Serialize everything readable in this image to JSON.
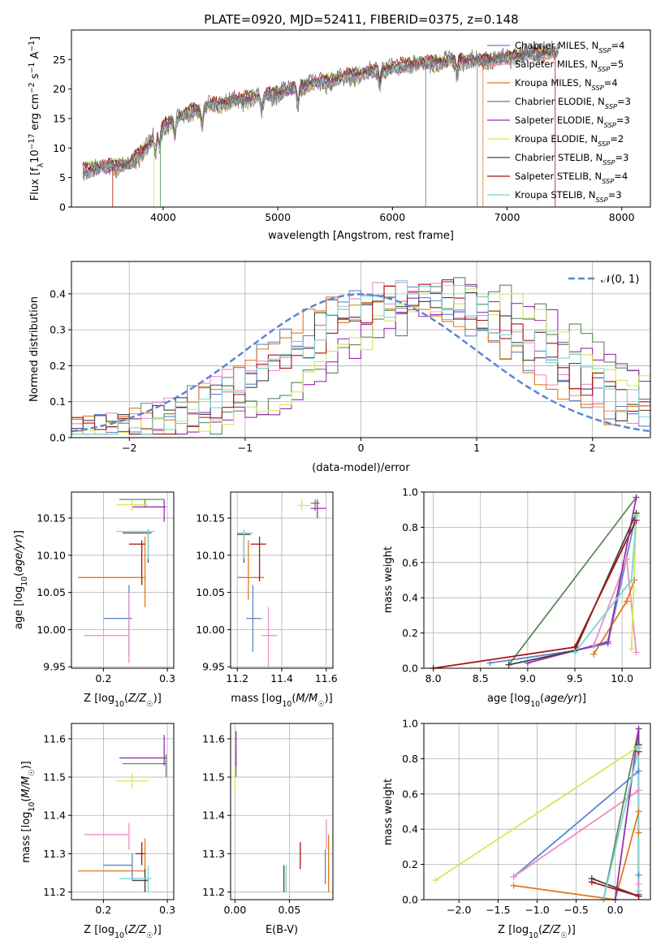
{
  "title": "PLATE=0920, MJD=52411, FIBERID=0375, z=0.148",
  "colors": {
    "chabrier_miles": "#5b86cf",
    "salpeter_miles": "#ec8ec4",
    "kroupa_miles": "#e07a1f",
    "chabrier_elodie": "#5a8a5a",
    "salpeter_elodie": "#9a2fb0",
    "kroupa_elodie": "#d4e85a",
    "chabrier_stelib": "#444444",
    "salpeter_stelib": "#aa1111",
    "kroupa_stelib": "#7fd3d3",
    "data": "#777777",
    "gaussian": "#5b86cf"
  },
  "legend": [
    {
      "key": "chabrier_miles",
      "label": "Chabrier MILES, N",
      "sub": "SSP",
      "suffix": "=4"
    },
    {
      "key": "salpeter_miles",
      "label": "Salpeter MILES, N",
      "sub": "SSP",
      "suffix": "=5"
    },
    {
      "key": "kroupa_miles",
      "label": "Kroupa MILES, N",
      "sub": "SSP",
      "suffix": "=4"
    },
    {
      "key": "chabrier_elodie",
      "label": "Chabrier ELODIE, N",
      "sub": "SSP",
      "suffix": "=3"
    },
    {
      "key": "salpeter_elodie",
      "label": "Salpeter ELODIE, N",
      "sub": "SSP",
      "suffix": "=3"
    },
    {
      "key": "kroupa_elodie",
      "label": "Kroupa ELODIE, N",
      "sub": "SSP",
      "suffix": "=2"
    },
    {
      "key": "chabrier_stelib",
      "label": "Chabrier STELIB, N",
      "sub": "SSP",
      "suffix": "=3"
    },
    {
      "key": "salpeter_stelib",
      "label": "Salpeter STELIB, N",
      "sub": "SSP",
      "suffix": "=4"
    },
    {
      "key": "kroupa_stelib",
      "label": "Kroupa STELIB, N",
      "sub": "SSP",
      "suffix": "=3"
    }
  ],
  "chart_data": [
    {
      "id": "spectrum",
      "type": "line",
      "xlabel": "wavelength [Angstrom, rest frame]",
      "ylabel": "Flux [f_λ 10^-17 erg cm^-2 s^-1 A^-1]",
      "xlim": [
        3200,
        8250
      ],
      "ylim": [
        0,
        30
      ],
      "xticks": [
        4000,
        5000,
        6000,
        7000,
        8000
      ],
      "yticks": [
        0,
        5,
        10,
        15,
        20,
        25
      ],
      "grid": false,
      "legend_position": "right",
      "x_range": [
        3300,
        7450
      ],
      "continuum": [
        [
          3300,
          6.2
        ],
        [
          3500,
          6.8
        ],
        [
          3700,
          7.0
        ],
        [
          3850,
          10.0
        ],
        [
          4000,
          13.5
        ],
        [
          4200,
          15.8
        ],
        [
          4400,
          17.0
        ],
        [
          4700,
          18.2
        ],
        [
          5000,
          19.2
        ],
        [
          5300,
          20.8
        ],
        [
          5600,
          22.0
        ],
        [
          5900,
          23.2
        ],
        [
          6200,
          24.2
        ],
        [
          6500,
          24.6
        ],
        [
          6800,
          24.7
        ],
        [
          7000,
          25.2
        ],
        [
          7200,
          25.8
        ],
        [
          7450,
          26.2
        ]
      ]
    },
    {
      "id": "residuals",
      "type": "histogram",
      "xlabel": "(data-model)/error",
      "ylabel": "Normed distribution",
      "xlim": [
        -2.5,
        2.5
      ],
      "ylim": [
        0,
        0.49
      ],
      "xticks": [
        -2,
        -1,
        0,
        1,
        2
      ],
      "yticks": [
        0.0,
        0.1,
        0.2,
        0.3,
        0.4
      ],
      "grid": true,
      "legend_position": "top-right",
      "reference": {
        "label": "𝒩(0, 1)",
        "mean": 0,
        "sigma": 1
      },
      "series_peak_centers": [
        {
          "key": "chabrier_miles",
          "center": 0.3
        },
        {
          "key": "salpeter_miles",
          "center": 0.35
        },
        {
          "key": "kroupa_miles",
          "center": 0.3
        },
        {
          "key": "chabrier_elodie",
          "center": 1.0
        },
        {
          "key": "salpeter_elodie",
          "center": 0.95
        },
        {
          "key": "kroupa_elodie",
          "center": 0.9
        },
        {
          "key": "chabrier_stelib",
          "center": 0.45
        },
        {
          "key": "salpeter_stelib",
          "center": 0.55
        },
        {
          "key": "kroupa_stelib",
          "center": 0.55
        }
      ]
    },
    {
      "id": "age_vs_Z",
      "type": "scatter",
      "xlabel": "Z [log10(Z/Z☉)]",
      "ylabel": "age  [log10(age/yr)]",
      "xlim": [
        0.15,
        0.31
      ],
      "ylim": [
        9.948,
        10.185
      ],
      "xticks": [
        0.2,
        0.3
      ],
      "yticks": [
        9.95,
        10.0,
        10.05,
        10.1,
        10.15
      ],
      "grid": true,
      "points": [
        {
          "key": "chabrier_miles",
          "x": 0.24,
          "y": 10.015,
          "xerr": [
            0.2,
            0.245
          ],
          "yerr": [
            9.965,
            10.06
          ]
        },
        {
          "key": "salpeter_miles",
          "x": 0.24,
          "y": 9.992,
          "xerr": [
            0.17,
            0.24
          ],
          "yerr": [
            9.955,
            10.05
          ]
        },
        {
          "key": "kroupa_miles",
          "x": 0.265,
          "y": 10.07,
          "xerr": [
            0.16,
            0.265
          ],
          "yerr": [
            10.03,
            10.125
          ]
        },
        {
          "key": "chabrier_elodie",
          "x": 0.265,
          "y": 10.175,
          "xerr": [
            0.225,
            0.295
          ],
          "yerr": [
            10.165,
            10.175
          ]
        },
        {
          "key": "salpeter_elodie",
          "x": 0.295,
          "y": 10.165,
          "xerr": [
            0.245,
            0.298
          ],
          "yerr": [
            10.145,
            10.175
          ]
        },
        {
          "key": "kroupa_elodie",
          "x": 0.245,
          "y": 10.168,
          "xerr": [
            0.22,
            0.27
          ],
          "yerr": [
            10.16,
            10.175
          ]
        },
        {
          "key": "chabrier_stelib",
          "x": 0.27,
          "y": 10.13,
          "xerr": [
            0.23,
            0.275
          ],
          "yerr": [
            10.09,
            10.135
          ]
        },
        {
          "key": "salpeter_stelib",
          "x": 0.26,
          "y": 10.115,
          "xerr": [
            0.24,
            0.265
          ],
          "yerr": [
            10.06,
            10.12
          ]
        },
        {
          "key": "kroupa_stelib",
          "x": 0.27,
          "y": 10.132,
          "xerr": [
            0.22,
            0.28
          ],
          "yerr": [
            10.095,
            10.135
          ]
        }
      ]
    },
    {
      "id": "age_vs_mass",
      "type": "scatter",
      "xlabel": "mass [log10(M/M☉)]",
      "ylabel": "",
      "xlim": [
        11.17,
        11.63
      ],
      "ylim": [
        9.948,
        10.185
      ],
      "xticks": [
        11.2,
        11.4,
        11.6
      ],
      "yticks": [
        9.95,
        10.0,
        10.05,
        10.1,
        10.15
      ],
      "grid": true,
      "points": [
        {
          "key": "chabrier_miles",
          "x": 11.27,
          "y": 10.015,
          "xerr": [
            11.24,
            11.31
          ],
          "yerr": [
            9.97,
            10.06
          ]
        },
        {
          "key": "salpeter_miles",
          "x": 11.34,
          "y": 9.992,
          "xerr": [
            11.31,
            11.38
          ],
          "yerr": [
            9.95,
            10.03
          ]
        },
        {
          "key": "kroupa_miles",
          "x": 11.25,
          "y": 10.07,
          "xerr": [
            11.2,
            11.32
          ],
          "yerr": [
            10.04,
            10.12
          ]
        },
        {
          "key": "chabrier_elodie",
          "x": 11.55,
          "y": 10.17,
          "xerr": [
            11.53,
            11.57
          ],
          "yerr": [
            10.16,
            10.175
          ]
        },
        {
          "key": "salpeter_elodie",
          "x": 11.56,
          "y": 10.163,
          "xerr": [
            11.53,
            11.6
          ],
          "yerr": [
            10.15,
            10.175
          ]
        },
        {
          "key": "kroupa_elodie",
          "x": 11.49,
          "y": 10.167,
          "xerr": [
            11.47,
            11.53
          ],
          "yerr": [
            10.16,
            10.175
          ]
        },
        {
          "key": "chabrier_stelib",
          "x": 11.23,
          "y": 10.128,
          "xerr": [
            11.2,
            11.26
          ],
          "yerr": [
            10.09,
            10.13
          ]
        },
        {
          "key": "salpeter_stelib",
          "x": 11.3,
          "y": 10.115,
          "xerr": [
            11.26,
            11.33
          ],
          "yerr": [
            10.065,
            10.125
          ]
        },
        {
          "key": "kroupa_stelib",
          "x": 11.23,
          "y": 10.13,
          "xerr": [
            11.2,
            11.27
          ],
          "yerr": [
            10.095,
            10.135
          ]
        }
      ]
    },
    {
      "id": "mass_weight_vs_age",
      "type": "line",
      "xlabel": "age  [log10(age/yr)]",
      "ylabel": "mass weight",
      "xlim": [
        7.9,
        10.3
      ],
      "ylim": [
        0,
        1.0
      ],
      "xticks": [
        8.0,
        8.5,
        9.0,
        9.5,
        10.0
      ],
      "yticks": [
        0.0,
        0.2,
        0.4,
        0.6,
        0.8,
        1.0
      ],
      "grid": true,
      "series": [
        {
          "key": "chabrier_miles",
          "x": [
            8.6,
            9.5,
            9.85,
            10.15
          ],
          "y": [
            0.03,
            0.1,
            0.14,
            0.88
          ]
        },
        {
          "key": "salpeter_miles",
          "x": [
            9.7,
            10.05,
            10.15
          ],
          "y": [
            0.13,
            0.62,
            0.09
          ]
        },
        {
          "key": "kroupa_miles",
          "x": [
            9.7,
            10.05,
            10.13
          ],
          "y": [
            0.08,
            0.38,
            0.5
          ]
        },
        {
          "key": "chabrier_elodie",
          "x": [
            8.8,
            10.15
          ],
          "y": [
            0.02,
            0.97
          ]
        },
        {
          "key": "salpeter_elodie",
          "x": [
            9.0,
            9.85,
            10.15
          ],
          "y": [
            0.03,
            0.15,
            0.97
          ]
        },
        {
          "key": "kroupa_elodie",
          "x": [
            10.1,
            10.15
          ],
          "y": [
            0.11,
            0.87
          ]
        },
        {
          "key": "chabrier_stelib",
          "x": [
            8.8,
            9.5,
            10.15
          ],
          "y": [
            0.02,
            0.1,
            0.88
          ]
        },
        {
          "key": "salpeter_stelib",
          "x": [
            8.0,
            9.5,
            10.15
          ],
          "y": [
            0.0,
            0.12,
            0.84
          ]
        },
        {
          "key": "kroupa_stelib",
          "x": [
            9.5,
            10.1,
            10.15
          ],
          "y": [
            0.09,
            0.5,
            0.86
          ]
        }
      ]
    },
    {
      "id": "mass_vs_Z",
      "type": "scatter",
      "xlabel": "Z [log10(Z/Z☉)]",
      "ylabel": "mass [log10(M/M☉)]",
      "xlim": [
        0.15,
        0.31
      ],
      "ylim": [
        11.18,
        11.64
      ],
      "xticks": [
        0.2,
        0.3
      ],
      "yticks": [
        11.2,
        11.3,
        11.4,
        11.5,
        11.6
      ],
      "grid": true,
      "points": [
        {
          "key": "chabrier_miles",
          "x": 0.245,
          "y": 11.27,
          "xerr": [
            0.2,
            0.245
          ],
          "yerr": [
            11.23,
            11.3
          ]
        },
        {
          "key": "salpeter_miles",
          "x": 0.24,
          "y": 11.35,
          "xerr": [
            0.17,
            0.24
          ],
          "yerr": [
            11.31,
            11.38
          ]
        },
        {
          "key": "kroupa_miles",
          "x": 0.265,
          "y": 11.255,
          "xerr": [
            0.16,
            0.265
          ],
          "yerr": [
            11.2,
            11.34
          ]
        },
        {
          "key": "chabrier_elodie",
          "x": 0.298,
          "y": 11.535,
          "xerr": [
            0.23,
            0.298
          ],
          "yerr": [
            11.5,
            11.56
          ]
        },
        {
          "key": "salpeter_elodie",
          "x": 0.295,
          "y": 11.55,
          "xerr": [
            0.225,
            0.298
          ],
          "yerr": [
            11.53,
            11.61
          ]
        },
        {
          "key": "kroupa_elodie",
          "x": 0.245,
          "y": 11.49,
          "xerr": [
            0.22,
            0.27
          ],
          "yerr": [
            11.47,
            11.51
          ]
        },
        {
          "key": "chabrier_stelib",
          "x": 0.265,
          "y": 11.23,
          "xerr": [
            0.245,
            0.27
          ],
          "yerr": [
            11.2,
            11.26
          ]
        },
        {
          "key": "salpeter_stelib",
          "x": 0.26,
          "y": 11.3,
          "xerr": [
            0.25,
            0.265
          ],
          "yerr": [
            11.27,
            11.33
          ]
        },
        {
          "key": "kroupa_stelib",
          "x": 0.27,
          "y": 11.235,
          "xerr": [
            0.225,
            0.275
          ],
          "yerr": [
            11.2,
            11.27
          ]
        }
      ]
    },
    {
      "id": "mass_vs_ebv",
      "type": "scatter",
      "xlabel": "E(B-V)",
      "ylabel": "",
      "xlim": [
        -0.004,
        0.09
      ],
      "ylim": [
        11.18,
        11.64
      ],
      "xticks": [
        0.0,
        0.05
      ],
      "yticks": [
        11.2,
        11.3,
        11.4,
        11.5,
        11.6
      ],
      "grid": true,
      "points": [
        {
          "key": "chabrier_miles",
          "x": 0.083,
          "y": 11.27,
          "xerr": [
            0.083,
            0.083
          ],
          "yerr": [
            11.22,
            11.31
          ]
        },
        {
          "key": "salpeter_miles",
          "x": 0.084,
          "y": 11.35,
          "xerr": [
            0.084,
            0.084
          ],
          "yerr": [
            11.31,
            11.39
          ]
        },
        {
          "key": "kroupa_miles",
          "x": 0.086,
          "y": 11.27,
          "xerr": [
            0.086,
            0.086
          ],
          "yerr": [
            11.2,
            11.35
          ]
        },
        {
          "key": "chabrier_elodie",
          "x": 0.001,
          "y": 11.54,
          "xerr": [
            0.001,
            0.001
          ],
          "yerr": [
            11.5,
            11.57
          ]
        },
        {
          "key": "salpeter_elodie",
          "x": 0.001,
          "y": 11.57,
          "xerr": [
            0.001,
            0.001
          ],
          "yerr": [
            11.53,
            11.62
          ]
        },
        {
          "key": "kroupa_elodie",
          "x": 0.0,
          "y": 11.49,
          "xerr": [
            0.0,
            0.0
          ],
          "yerr": [
            11.46,
            11.52
          ]
        },
        {
          "key": "chabrier_stelib",
          "x": 0.045,
          "y": 11.23,
          "xerr": [
            0.045,
            0.045
          ],
          "yerr": [
            11.2,
            11.27
          ]
        },
        {
          "key": "salpeter_stelib",
          "x": 0.06,
          "y": 11.3,
          "xerr": [
            0.06,
            0.06
          ],
          "yerr": [
            11.26,
            11.33
          ]
        },
        {
          "key": "kroupa_stelib",
          "x": 0.047,
          "y": 11.23,
          "xerr": [
            0.047,
            0.047
          ],
          "yerr": [
            11.2,
            11.27
          ]
        }
      ]
    },
    {
      "id": "mass_weight_vs_Z",
      "type": "line",
      "xlabel": "Z [log10(Z/Z☉)]",
      "ylabel": "mass weight",
      "xlim": [
        -2.45,
        0.45
      ],
      "ylim": [
        0,
        1.0
      ],
      "xticks": [
        -2.0,
        -1.5,
        -1.0,
        -0.5,
        0.0
      ],
      "yticks": [
        0.0,
        0.2,
        0.4,
        0.6,
        0.8,
        1.0
      ],
      "grid": true,
      "series": [
        {
          "key": "chabrier_miles",
          "x": [
            -1.3,
            0.3,
            0.3
          ],
          "y": [
            0.13,
            0.73,
            0.14
          ]
        },
        {
          "key": "salpeter_miles",
          "x": [
            -1.3,
            0.3,
            0.3
          ],
          "y": [
            0.13,
            0.62,
            0.09
          ]
        },
        {
          "key": "kroupa_miles",
          "x": [
            -1.3,
            0.0,
            0.3,
            0.3
          ],
          "y": [
            0.08,
            0.0,
            0.5,
            0.38
          ]
        },
        {
          "key": "chabrier_elodie",
          "x": [
            -0.15,
            0.3,
            0.3
          ],
          "y": [
            0.0,
            0.97,
            0.02
          ]
        },
        {
          "key": "salpeter_elodie",
          "x": [
            0.0,
            0.3,
            0.3
          ],
          "y": [
            0.0,
            0.97,
            0.03
          ]
        },
        {
          "key": "kroupa_elodie",
          "x": [
            -2.3,
            0.3
          ],
          "y": [
            0.11,
            0.87
          ]
        },
        {
          "key": "chabrier_stelib",
          "x": [
            -0.3,
            0.3,
            0.3
          ],
          "y": [
            0.12,
            0.02,
            0.88
          ]
        },
        {
          "key": "salpeter_stelib",
          "x": [
            -0.3,
            0.3,
            0.3
          ],
          "y": [
            0.1,
            0.02,
            0.84
          ]
        },
        {
          "key": "kroupa_stelib",
          "x": [
            -0.15,
            0.3,
            0.3
          ],
          "y": [
            0.0,
            0.86,
            0.05
          ]
        }
      ]
    }
  ]
}
